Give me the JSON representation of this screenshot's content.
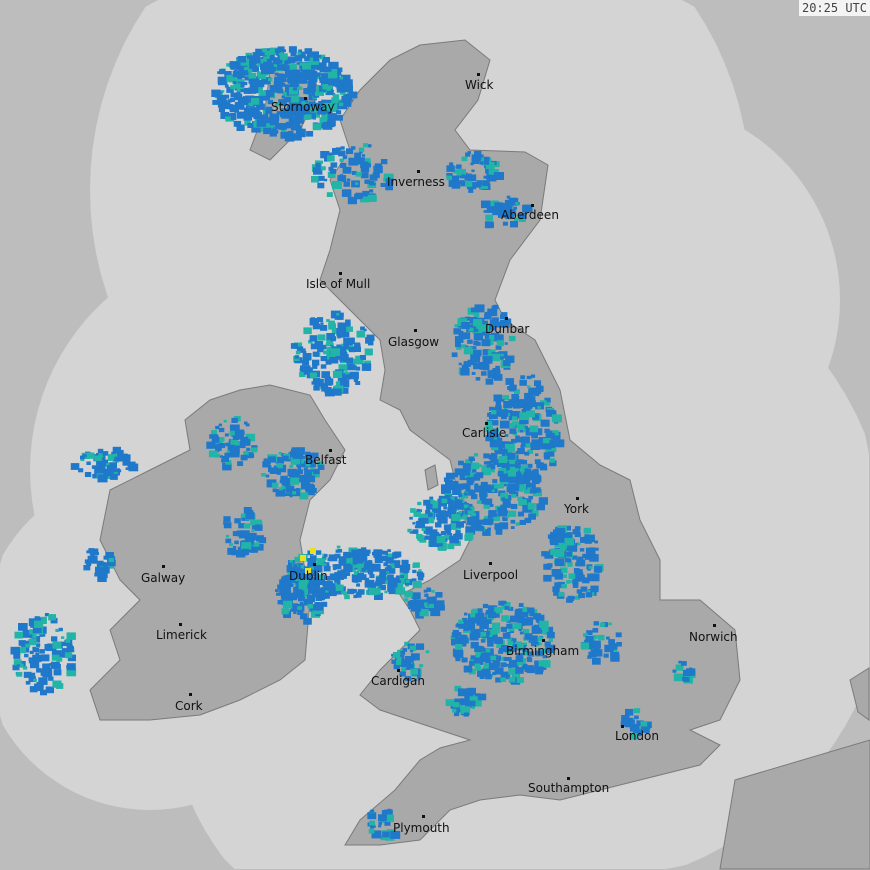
{
  "map": {
    "timestamp": "20:25 UTC",
    "cities": [
      "Wick",
      "Stornoway",
      "Inverness",
      "Aberdeen",
      "Isle of Mull",
      "Dunbar",
      "Glasgow",
      "Carlisle",
      "Belfast",
      "York",
      "Galway",
      "Dublin",
      "Liverpool",
      "Limerick",
      "Norwich",
      "Birmingham",
      "Cardigan",
      "Cork",
      "London",
      "Southampton",
      "Plymouth"
    ],
    "colors": {
      "outside_coverage": "#bdbdbd",
      "coverage": "#d4d4d4",
      "land": "#a9a9a9",
      "coast": "#7a7a7a",
      "rain_light": "#1f78c9",
      "rain_moderate": "#22b4a6",
      "rain_heavy": "#e8e020"
    }
  }
}
